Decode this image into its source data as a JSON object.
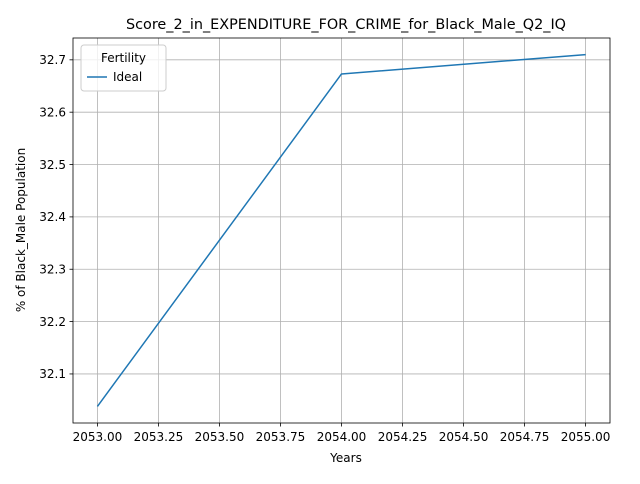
{
  "chart_data": {
    "type": "line",
    "title": "Score_2_in_EXPENDITURE_FOR_CRIME_for_Black_Male_Q2_IQ",
    "xlabel": "Years",
    "ylabel": "% of Black_Male Population",
    "x": [
      2053.0,
      2054.0,
      2055.0
    ],
    "series": [
      {
        "name": "Ideal",
        "values": [
          32.038,
          32.673,
          32.71
        ],
        "color": "#1f77b4"
      }
    ],
    "xlim": [
      2052.9,
      2055.1
    ],
    "ylim": [
      32.0063,
      32.7417
    ],
    "xticks": [
      2053.0,
      2053.25,
      2053.5,
      2053.75,
      2054.0,
      2054.25,
      2054.5,
      2054.75,
      2055.0
    ],
    "xtick_labels": [
      "2053.00",
      "2053.25",
      "2053.50",
      "2053.75",
      "2054.00",
      "2054.25",
      "2054.50",
      "2054.75",
      "2055.00"
    ],
    "yticks": [
      32.1,
      32.2,
      32.3,
      32.4,
      32.5,
      32.6,
      32.7
    ],
    "ytick_labels": [
      "32.1",
      "32.2",
      "32.3",
      "32.4",
      "32.5",
      "32.6",
      "32.7"
    ],
    "grid": true,
    "legend": {
      "title": "Fertility",
      "placement": "top-left"
    }
  }
}
